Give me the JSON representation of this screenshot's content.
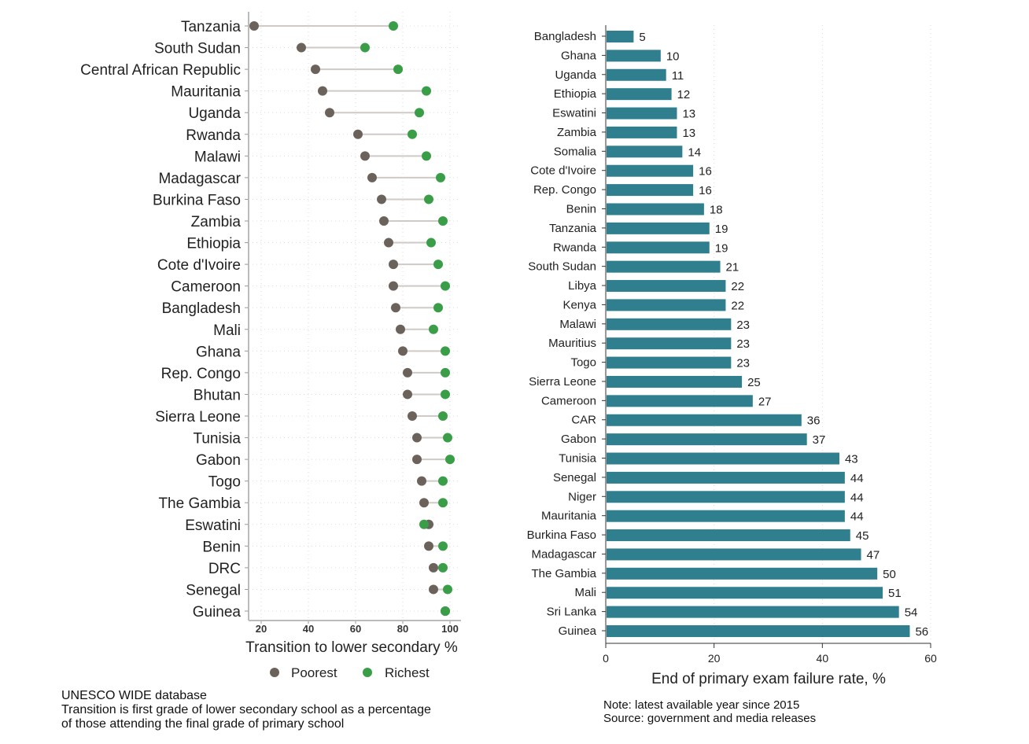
{
  "chart_data": [
    {
      "type": "scatter",
      "subtype": "dumbbell",
      "xlabel": "Transition to lower secondary %",
      "xticks": [
        20,
        40,
        60,
        80,
        100
      ],
      "xlim": [
        15,
        102
      ],
      "grid": true,
      "legend_position": "bottom",
      "colors": {
        "Poorest": "#6b625c",
        "Richest": "#3a9d48",
        "connector": "#cfcac6"
      },
      "categories": [
        "Tanzania",
        "South Sudan",
        "Central African Republic",
        "Mauritania",
        "Uganda",
        "Rwanda",
        "Malawi",
        "Madagascar",
        "Burkina Faso",
        "Zambia",
        "Ethiopia",
        "Cote d'Ivoire",
        "Cameroon",
        "Bangladesh",
        "Mali",
        "Ghana",
        "Rep. Congo",
        "Bhutan",
        "Sierra Leone",
        "Tunisia",
        "Gabon",
        "Togo",
        "The Gambia",
        "Eswatini",
        "Benin",
        "DRC",
        "Senegal",
        "Guinea"
      ],
      "series": [
        {
          "name": "Poorest",
          "values": [
            17,
            37,
            43,
            46,
            49,
            61,
            64,
            67,
            71,
            72,
            74,
            76,
            76,
            77,
            79,
            80,
            82,
            82,
            84,
            86,
            86,
            88,
            89,
            91,
            91,
            93,
            93,
            98
          ]
        },
        {
          "name": "Richest",
          "values": [
            76,
            64,
            78,
            90,
            87,
            84,
            90,
            96,
            91,
            97,
            92,
            95,
            98,
            95,
            93,
            98,
            98,
            98,
            97,
            99,
            100,
            97,
            97,
            89,
            97,
            97,
            99,
            98
          ]
        }
      ],
      "source": "UNESCO WIDE database",
      "note": [
        "Transition is first grade of lower secondary school as a percentage",
        "of those attending the final grade of primary school"
      ]
    },
    {
      "type": "bar",
      "orientation": "horizontal",
      "xlabel": "End of primary exam failure rate, %",
      "xticks": [
        0,
        20,
        40,
        60
      ],
      "xlim": [
        0,
        60
      ],
      "grid": true,
      "color": "#2f7f8e",
      "categories": [
        "Bangladesh",
        "Ghana",
        "Uganda",
        "Ethiopia",
        "Eswatini",
        "Zambia",
        "Somalia",
        "Cote d'Ivoire",
        "Rep. Congo",
        "Benin",
        "Tanzania",
        "Rwanda",
        "South Sudan",
        "Libya",
        "Kenya",
        "Malawi",
        "Mauritius",
        "Togo",
        "Sierra Leone",
        "Cameroon",
        "CAR",
        "Gabon",
        "Tunisia",
        "Senegal",
        "Niger",
        "Mauritania",
        "Burkina Faso",
        "Madagascar",
        "The Gambia",
        "Mali",
        "Sri Lanka",
        "Guinea"
      ],
      "values": [
        5,
        10,
        11,
        12,
        13,
        13,
        14,
        16,
        16,
        18,
        19,
        19,
        21,
        22,
        22,
        23,
        23,
        23,
        25,
        27,
        36,
        37,
        43,
        44,
        44,
        44,
        45,
        47,
        50,
        51,
        54,
        56
      ],
      "note": [
        "Note: latest available year since 2015",
        "Source: government and media releases"
      ]
    }
  ]
}
